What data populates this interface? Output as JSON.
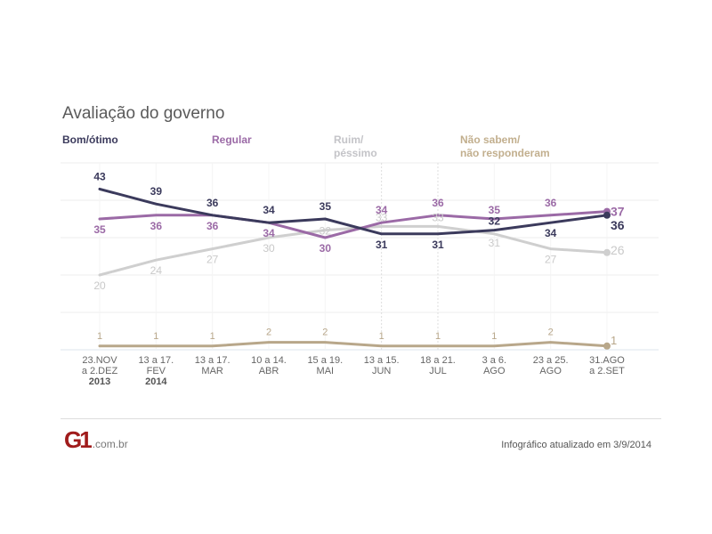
{
  "chart_data": {
    "type": "line",
    "title": "Avaliação do governo",
    "xlabel": "",
    "ylabel": "",
    "ylim": [
      0,
      50
    ],
    "grid": true,
    "legend_position": "top",
    "categories": [
      [
        "23.NOV",
        "a 2.DEZ",
        "2013"
      ],
      [
        "13 a 17.",
        "FEV",
        "2014"
      ],
      [
        "13 a 17.",
        "MAR",
        ""
      ],
      [
        "10 a 14.",
        "ABR",
        ""
      ],
      [
        "15 a 19.",
        "MAI",
        ""
      ],
      [
        "13 a 15.",
        "JUN",
        ""
      ],
      [
        "18 a 21.",
        "JUL",
        ""
      ],
      [
        "3 a 6.",
        "AGO",
        ""
      ],
      [
        "23 a 25.",
        "AGO",
        ""
      ],
      [
        "31.AGO",
        "a 2.SET",
        ""
      ]
    ],
    "series": [
      {
        "name": "Bom/ótimo",
        "color": "#3b3a5c",
        "values": [
          43,
          39,
          36,
          34,
          35,
          31,
          31,
          32,
          34,
          36
        ]
      },
      {
        "name": "Regular",
        "color": "#9b6aa6",
        "values": [
          35,
          36,
          36,
          34,
          30,
          34,
          36,
          35,
          36,
          37
        ]
      },
      {
        "name": "Ruim/ péssimo",
        "color": "#cfcfcf",
        "values": [
          20,
          24,
          27,
          30,
          32,
          33,
          33,
          31,
          27,
          26
        ]
      },
      {
        "name": "Não sabem/ não responderam",
        "color": "#b8a78a",
        "values": [
          1,
          1,
          1,
          2,
          2,
          1,
          1,
          1,
          2,
          1
        ]
      }
    ]
  },
  "legend": [
    {
      "line1": "Bom/ótimo",
      "line2": ""
    },
    {
      "line1": "Regular",
      "line2": ""
    },
    {
      "line1": "Ruim/",
      "line2": "péssimo"
    },
    {
      "line1": "Não sabem/",
      "line2": "não responderam"
    }
  ],
  "footer": {
    "logo_mark": "G1",
    "logo_domain": ".com.br",
    "updated": "Infográfico atualizado em 3/9/2014"
  }
}
